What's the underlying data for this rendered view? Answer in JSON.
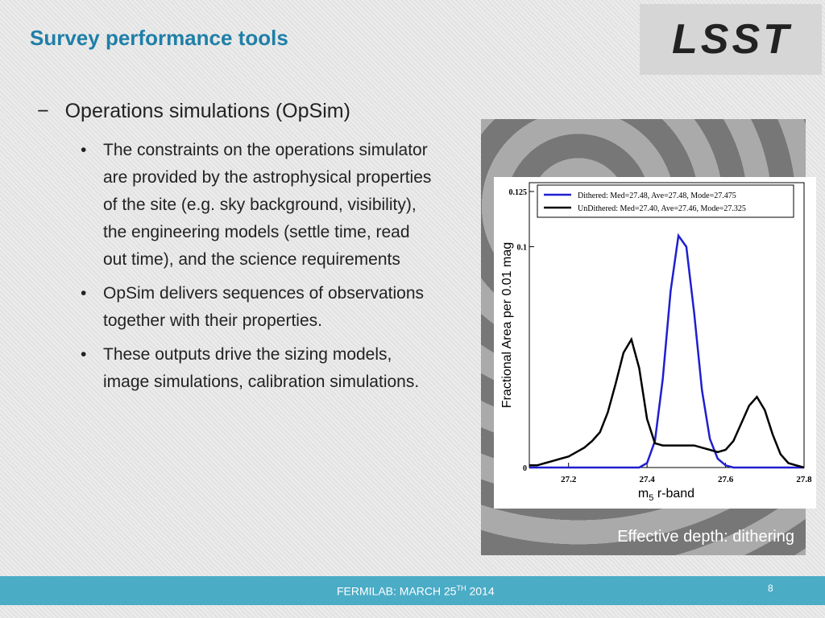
{
  "slide": {
    "title": "Survey performance tools",
    "logo": "LSST",
    "bullet": "Operations simulations (OpSim)",
    "subbullets": [
      "The constraints on the operations simulator are provided by the astrophysical properties of the site (e.g. sky background, visibility), the engineering models (settle time, read out time), and the science requirements",
      "OpSim delivers sequences of observations together with their properties.",
      "These outputs drive the sizing models, image simulations, calibration simulations."
    ],
    "caption": "Effective depth: dithering",
    "footer": {
      "text": "FERMILAB: MARCH 25",
      "sup": "TH",
      "year": " 2014"
    },
    "page_number": "8"
  },
  "chart_data": {
    "type": "line",
    "y_label": "Fractional Area per 0.01 mag",
    "x_label": {
      "main": "m",
      "sub": "5",
      "rest": " r-band"
    },
    "x": [
      27.1,
      27.12,
      27.14,
      27.16,
      27.18,
      27.2,
      27.22,
      27.24,
      27.26,
      27.28,
      27.3,
      27.32,
      27.34,
      27.36,
      27.38,
      27.4,
      27.42,
      27.44,
      27.46,
      27.48,
      27.5,
      27.52,
      27.54,
      27.56,
      27.58,
      27.6,
      27.62,
      27.64,
      27.66,
      27.68,
      27.7,
      27.72,
      27.74,
      27.76,
      27.78,
      27.8
    ],
    "series": [
      {
        "name": "Dithered: Med=27.48, Ave=27.48, Mode=27.475",
        "color": "#1f1fd0",
        "values": [
          0,
          0,
          0,
          0,
          0,
          0,
          0,
          0,
          0,
          0,
          0,
          0,
          0,
          0,
          0,
          0.002,
          0.012,
          0.04,
          0.08,
          0.105,
          0.1,
          0.07,
          0.035,
          0.013,
          0.004,
          0.001,
          0,
          0,
          0,
          0,
          0,
          0,
          0,
          0,
          0,
          0
        ]
      },
      {
        "name": "UnDithered:  Med=27.40, Ave=27.46, Mode=27.325",
        "color": "#000000",
        "values": [
          0.001,
          0.001,
          0.002,
          0.003,
          0.004,
          0.005,
          0.007,
          0.009,
          0.012,
          0.016,
          0.025,
          0.038,
          0.052,
          0.058,
          0.045,
          0.022,
          0.011,
          0.01,
          0.01,
          0.01,
          0.01,
          0.01,
          0.009,
          0.008,
          0.007,
          0.008,
          0.012,
          0.02,
          0.028,
          0.032,
          0.026,
          0.015,
          0.006,
          0.002,
          0.001,
          0
        ]
      }
    ],
    "xlim": [
      27.1,
      27.8
    ],
    "xticks": [
      27.2,
      27.4,
      27.6,
      27.8
    ],
    "ylim": [
      0,
      0.129
    ],
    "yticks": [
      0,
      0.1,
      0.125
    ]
  }
}
